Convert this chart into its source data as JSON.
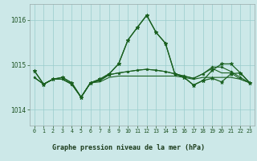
{
  "title": "Graphe pression niveau de la mer (hPa)",
  "bg_color": "#cce8e8",
  "plot_bg_color": "#cce8e8",
  "footer_bg": "#6aaa6a",
  "grid_color": "#99cccc",
  "line_color": "#1a6020",
  "text_color": "#1a5020",
  "x_labels": [
    "0",
    "1",
    "2",
    "3",
    "4",
    "5",
    "6",
    "7",
    "8",
    "9",
    "10",
    "11",
    "12",
    "13",
    "14",
    "15",
    "16",
    "17",
    "18",
    "19",
    "20",
    "21",
    "22",
    "23"
  ],
  "ylim": [
    1013.65,
    1016.35
  ],
  "yticks": [
    1014,
    1015,
    1016
  ],
  "series": [
    [
      1014.87,
      1014.57,
      1014.68,
      1014.72,
      1014.6,
      1014.28,
      1014.6,
      1014.68,
      1014.8,
      1015.02,
      1015.55,
      1015.83,
      1016.1,
      1015.72,
      1015.48,
      1014.8,
      1014.72,
      1014.55,
      1014.65,
      1014.7,
      1014.62,
      1014.8,
      1014.82,
      1014.6
    ],
    [
      1014.72,
      1014.57,
      1014.68,
      1014.68,
      1014.57,
      1014.28,
      1014.6,
      1014.62,
      1014.72,
      1014.75,
      1014.75,
      1014.75,
      1014.75,
      1014.75,
      1014.75,
      1014.75,
      1014.72,
      1014.68,
      1014.72,
      1014.72,
      1014.72,
      1014.72,
      1014.68,
      1014.6
    ],
    [
      1014.72,
      1014.57,
      1014.68,
      1014.68,
      1014.57,
      1014.28,
      1014.6,
      1014.65,
      1014.78,
      1014.82,
      1014.85,
      1014.88,
      1014.9,
      1014.88,
      1014.85,
      1014.8,
      1014.75,
      1014.7,
      1014.8,
      1014.95,
      1014.95,
      1014.85,
      1014.72,
      1014.6
    ],
    [
      1014.72,
      1014.57,
      1014.68,
      1014.68,
      1014.57,
      1014.28,
      1014.6,
      1014.65,
      1014.78,
      1014.82,
      1014.85,
      1014.88,
      1014.9,
      1014.88,
      1014.85,
      1014.8,
      1014.75,
      1014.7,
      1014.8,
      1014.92,
      1014.82,
      1014.82,
      1014.68,
      1014.6
    ],
    [
      1014.87,
      1014.57,
      1014.68,
      1014.72,
      1014.6,
      1014.28,
      1014.6,
      1014.68,
      1014.8,
      1015.02,
      1015.55,
      1015.83,
      1016.1,
      1015.72,
      1015.48,
      1014.8,
      1014.72,
      1014.55,
      1014.65,
      1014.88,
      1015.02,
      1015.02,
      1014.82,
      1014.6
    ]
  ],
  "line_styles": [
    {
      "lw": 0.9,
      "marker": "*",
      "ms": 3.5
    },
    {
      "lw": 0.8,
      "marker": null,
      "ms": 0
    },
    {
      "lw": 0.8,
      "marker": "*",
      "ms": 2.5
    },
    {
      "lw": 0.8,
      "marker": null,
      "ms": 0
    },
    {
      "lw": 0.9,
      "marker": "*",
      "ms": 3.5
    }
  ]
}
